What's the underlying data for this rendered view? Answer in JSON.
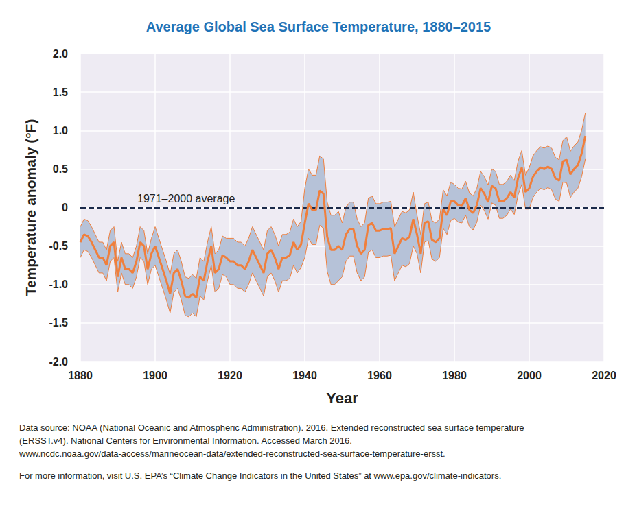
{
  "chart_data": {
    "type": "line",
    "title": "Average Global Sea Surface Temperature, 1880–2015",
    "x_label": "Year",
    "y_label": "Temperature anomaly (°F)",
    "x": [
      1880,
      1881,
      1882,
      1883,
      1884,
      1885,
      1886,
      1887,
      1888,
      1889,
      1890,
      1891,
      1892,
      1893,
      1894,
      1895,
      1896,
      1897,
      1898,
      1899,
      1900,
      1901,
      1902,
      1903,
      1904,
      1905,
      1906,
      1907,
      1908,
      1909,
      1910,
      1911,
      1912,
      1913,
      1914,
      1915,
      1916,
      1917,
      1918,
      1919,
      1920,
      1921,
      1922,
      1923,
      1924,
      1925,
      1926,
      1927,
      1928,
      1929,
      1930,
      1931,
      1932,
      1933,
      1934,
      1935,
      1936,
      1937,
      1938,
      1939,
      1940,
      1941,
      1942,
      1943,
      1944,
      1945,
      1946,
      1947,
      1948,
      1949,
      1950,
      1951,
      1952,
      1953,
      1954,
      1955,
      1956,
      1957,
      1958,
      1959,
      1960,
      1961,
      1962,
      1963,
      1964,
      1965,
      1966,
      1967,
      1968,
      1969,
      1970,
      1971,
      1972,
      1973,
      1974,
      1975,
      1976,
      1977,
      1978,
      1979,
      1980,
      1981,
      1982,
      1983,
      1984,
      1985,
      1986,
      1987,
      1988,
      1989,
      1990,
      1991,
      1992,
      1993,
      1994,
      1995,
      1996,
      1997,
      1998,
      1999,
      2000,
      2001,
      2002,
      2003,
      2004,
      2005,
      2006,
      2007,
      2008,
      2009,
      2010,
      2011,
      2012,
      2013,
      2014,
      2015
    ],
    "values": [
      -0.45,
      -0.35,
      -0.37,
      -0.45,
      -0.55,
      -0.65,
      -0.65,
      -0.75,
      -0.5,
      -0.45,
      -0.9,
      -0.65,
      -0.8,
      -0.8,
      -0.85,
      -0.7,
      -0.45,
      -0.5,
      -0.8,
      -0.6,
      -0.5,
      -0.65,
      -0.8,
      -0.95,
      -1.12,
      -0.85,
      -0.8,
      -0.95,
      -1.15,
      -1.17,
      -1.12,
      -1.17,
      -0.9,
      -0.95,
      -0.7,
      -0.5,
      -0.85,
      -0.8,
      -0.62,
      -0.65,
      -0.7,
      -0.7,
      -0.75,
      -0.75,
      -0.8,
      -0.7,
      -0.55,
      -0.65,
      -0.75,
      -0.85,
      -0.6,
      -0.55,
      -0.65,
      -0.8,
      -0.65,
      -0.65,
      -0.62,
      -0.45,
      -0.55,
      -0.48,
      -0.2,
      0.05,
      -0.03,
      -0.03,
      0.22,
      0.18,
      -0.38,
      -0.55,
      -0.55,
      -0.5,
      -0.55,
      -0.35,
      -0.28,
      -0.28,
      -0.5,
      -0.6,
      -0.55,
      -0.23,
      -0.2,
      -0.3,
      -0.3,
      -0.28,
      -0.28,
      -0.27,
      -0.6,
      -0.5,
      -0.4,
      -0.42,
      -0.38,
      -0.15,
      -0.35,
      -0.6,
      -0.2,
      -0.18,
      -0.42,
      -0.45,
      -0.4,
      -0.02,
      -0.1,
      0.08,
      0.08,
      0.03,
      0.02,
      0.12,
      -0.03,
      -0.07,
      0.03,
      0.25,
      0.18,
      0.07,
      0.28,
      0.25,
      0.08,
      0.08,
      0.12,
      0.2,
      0.13,
      0.38,
      0.52,
      0.2,
      0.25,
      0.4,
      0.47,
      0.52,
      0.5,
      0.53,
      0.5,
      0.38,
      0.35,
      0.6,
      0.62,
      0.43,
      0.5,
      0.55,
      0.7,
      0.93
    ],
    "upper": [
      -0.25,
      -0.15,
      -0.17,
      -0.25,
      -0.35,
      -0.45,
      -0.45,
      -0.55,
      -0.3,
      -0.25,
      -0.7,
      -0.45,
      -0.6,
      -0.6,
      -0.65,
      -0.5,
      -0.25,
      -0.3,
      -0.6,
      -0.4,
      -0.25,
      -0.4,
      -0.55,
      -0.7,
      -0.87,
      -0.6,
      -0.55,
      -0.7,
      -0.9,
      -0.92,
      -0.87,
      -0.92,
      -0.65,
      -0.7,
      -0.45,
      -0.25,
      -0.6,
      -0.55,
      -0.37,
      -0.4,
      -0.4,
      -0.4,
      -0.45,
      -0.45,
      -0.5,
      -0.4,
      -0.25,
      -0.35,
      -0.45,
      -0.55,
      -0.3,
      -0.25,
      -0.35,
      -0.5,
      -0.35,
      -0.35,
      -0.32,
      -0.15,
      -0.25,
      -0.18,
      0.25,
      0.5,
      0.42,
      0.42,
      0.67,
      0.63,
      0.07,
      -0.1,
      -0.1,
      -0.05,
      -0.2,
      0.0,
      0.07,
      0.07,
      -0.15,
      -0.25,
      -0.2,
      0.12,
      0.15,
      0.05,
      0.05,
      0.07,
      0.07,
      0.08,
      -0.25,
      -0.15,
      -0.05,
      -0.07,
      -0.03,
      0.2,
      -0.1,
      -0.35,
      0.05,
      0.07,
      -0.17,
      -0.2,
      -0.15,
      0.23,
      0.15,
      0.33,
      0.3,
      0.25,
      0.24,
      0.34,
      0.19,
      0.15,
      0.25,
      0.47,
      0.4,
      0.29,
      0.5,
      0.47,
      0.3,
      0.3,
      0.34,
      0.42,
      0.35,
      0.6,
      0.74,
      0.42,
      0.52,
      0.67,
      0.74,
      0.79,
      0.77,
      0.8,
      0.77,
      0.65,
      0.62,
      0.87,
      0.92,
      0.73,
      0.8,
      0.85,
      1.0,
      1.23
    ],
    "lower": [
      -0.65,
      -0.55,
      -0.57,
      -0.65,
      -0.75,
      -0.85,
      -0.85,
      -0.95,
      -0.7,
      -0.65,
      -1.1,
      -0.85,
      -1.0,
      -1.0,
      -1.05,
      -0.9,
      -0.65,
      -0.7,
      -1.0,
      -0.8,
      -0.75,
      -0.9,
      -1.05,
      -1.2,
      -1.37,
      -1.1,
      -1.05,
      -1.2,
      -1.4,
      -1.42,
      -1.37,
      -1.42,
      -1.15,
      -1.2,
      -0.95,
      -0.75,
      -1.1,
      -1.05,
      -0.87,
      -0.9,
      -1.0,
      -1.0,
      -1.05,
      -1.05,
      -1.1,
      -1.0,
      -0.85,
      -0.95,
      -1.05,
      -1.15,
      -0.9,
      -0.85,
      -0.95,
      -1.1,
      -0.95,
      -0.95,
      -0.92,
      -0.75,
      -0.85,
      -0.78,
      -0.65,
      -0.4,
      -0.48,
      -0.48,
      -0.23,
      -0.27,
      -0.83,
      -1.0,
      -1.0,
      -0.95,
      -0.9,
      -0.7,
      -0.63,
      -0.63,
      -0.85,
      -0.95,
      -0.9,
      -0.58,
      -0.55,
      -0.65,
      -0.65,
      -0.63,
      -0.63,
      -0.62,
      -0.95,
      -0.85,
      -0.75,
      -0.77,
      -0.73,
      -0.5,
      -0.6,
      -0.85,
      -0.45,
      -0.43,
      -0.67,
      -0.7,
      -0.65,
      -0.27,
      -0.35,
      -0.17,
      -0.14,
      -0.19,
      -0.2,
      -0.1,
      -0.25,
      -0.29,
      -0.19,
      0.03,
      -0.04,
      -0.15,
      0.06,
      0.03,
      -0.14,
      -0.14,
      -0.1,
      -0.02,
      -0.09,
      0.16,
      0.3,
      -0.02,
      -0.02,
      0.13,
      0.2,
      0.25,
      0.23,
      0.26,
      0.23,
      0.11,
      0.08,
      0.33,
      0.32,
      0.13,
      0.2,
      0.25,
      0.4,
      0.63
    ],
    "color": "#f07f3c",
    "reference_line": {
      "y": 0,
      "label": "1971–2000 average"
    },
    "xlim": [
      1880,
      2020
    ],
    "xticks": [
      1880,
      1900,
      1920,
      1940,
      1960,
      1980,
      2000,
      2020
    ],
    "ylim": [
      -2,
      2
    ],
    "yticks": [
      {
        "value": -2,
        "label": "-2.0"
      },
      -1.5,
      {
        "value": -1,
        "label": "-1.0"
      },
      -0.5,
      0,
      0.5,
      {
        "value": 1,
        "label": "1.0"
      },
      1.5,
      {
        "value": 2,
        "label": "2.0"
      }
    ],
    "grid": true,
    "source": [
      "Data source: NOAA (National Oceanic and Atmospheric Administration). 2016. Extended reconstructed sea surface temperature",
      "(ERSST.v4). National Centers for Environmental Information. Accessed March 2016.",
      "www.ncdc.noaa.gov/data-access/marineocean-data/extended-reconstructed-sea-surface-temperature-ersst."
    ],
    "footnote": "For more information, visit U.S. EPA’s “Climate Change Indicators in the United States” at www.epa.gov/climate-indicators."
  }
}
